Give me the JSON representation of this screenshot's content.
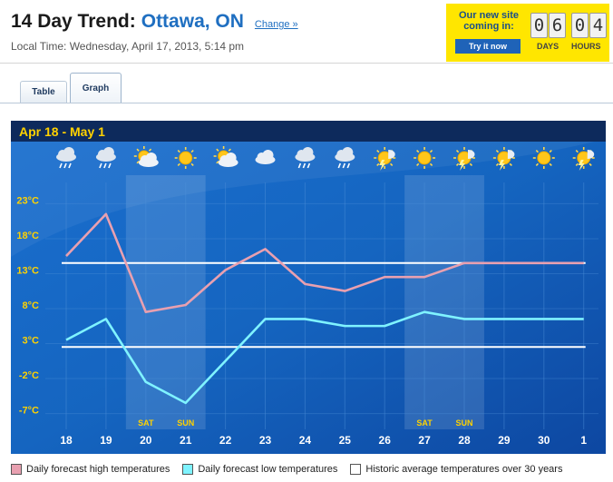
{
  "header": {
    "title_prefix": "14 Day Trend:",
    "city": "Ottawa, ON",
    "change_link": "Change »",
    "local_time": "Local Time: Wednesday, April 17, 2013, 5:14 pm"
  },
  "promo": {
    "line1": "Our new site",
    "line2": "coming in:",
    "button": "Try it now",
    "digits": [
      "0",
      "6",
      "0",
      "4"
    ],
    "days_label": "DAYS",
    "hours_label": "HOURS",
    "background": "#ffe600"
  },
  "tabs": [
    {
      "label": "Table",
      "active": false
    },
    {
      "label": "Graph",
      "active": true
    }
  ],
  "chart_data": {
    "type": "line",
    "title": "Apr 18  -  May 1",
    "categories": [
      "18",
      "19",
      "20",
      "21",
      "22",
      "23",
      "24",
      "25",
      "26",
      "27",
      "28",
      "29",
      "30",
      "1"
    ],
    "weekend_labels": {
      "20": "SAT",
      "21": "SUN",
      "27": "SAT",
      "28": "SUN"
    },
    "icons": [
      "rain-icon",
      "rain-icon",
      "sun-cloud-icon",
      "sun-icon",
      "sun-cloud-icon",
      "cloud-icon",
      "rain-icon",
      "rain-icon",
      "sun-storm-icon",
      "sun-icon",
      "sun-storm-icon",
      "sun-storm-icon",
      "sun-icon",
      "sun-storm-icon"
    ],
    "yticks": [
      "23°C",
      "18°C",
      "13°C",
      "8°C",
      "3°C",
      "-2°C",
      "-7°C"
    ],
    "ytick_values": [
      23,
      18,
      13,
      8,
      3,
      -2,
      -7
    ],
    "ylim": [
      -9,
      25
    ],
    "series": [
      {
        "name": "Daily forecast high temperatures",
        "color": "#e8a0b0",
        "values": [
          15,
          21,
          7,
          8,
          13,
          16,
          11,
          10,
          12,
          12,
          14,
          14,
          14,
          14
        ]
      },
      {
        "name": "Daily forecast low temperatures",
        "color": "#7ff3ff",
        "values": [
          3,
          6,
          -3,
          -6,
          0,
          6,
          6,
          5,
          5,
          7,
          6,
          6,
          6,
          6
        ]
      }
    ],
    "historic": {
      "name": "Historic average temperatures over 30 years",
      "color": "#ffffff",
      "high": 14,
      "low": 2
    },
    "colors": {
      "background": "#1565c0",
      "header": "#0d2a5c",
      "title": "#ffd200",
      "axis_text": "#ffd200",
      "day_text": "#ffffff"
    }
  }
}
